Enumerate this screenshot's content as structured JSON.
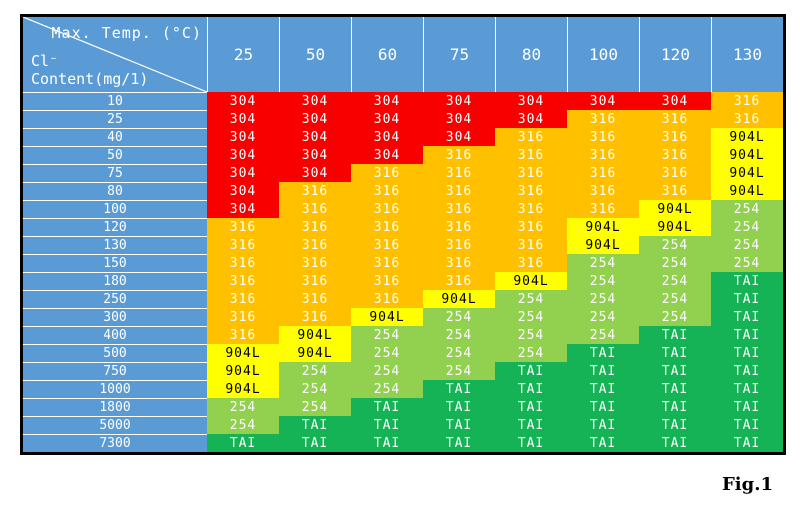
{
  "chart_data": {
    "type": "heatmap",
    "corner": {
      "top_label": "Max. Temp. (°C)",
      "left_label_line1": "Cl⁻",
      "left_label_line2": "Content(mg/1)"
    },
    "x_categories": [
      "25",
      "50",
      "60",
      "75",
      "80",
      "100",
      "120",
      "130"
    ],
    "y_categories": [
      "10",
      "25",
      "40",
      "50",
      "75",
      "80",
      "100",
      "120",
      "130",
      "150",
      "180",
      "250",
      "300",
      "400",
      "500",
      "750",
      "1000",
      "1800",
      "5000",
      "7300"
    ],
    "values": [
      [
        "304",
        "304",
        "304",
        "304",
        "304",
        "304",
        "304",
        "316"
      ],
      [
        "304",
        "304",
        "304",
        "304",
        "304",
        "316",
        "316",
        "316"
      ],
      [
        "304",
        "304",
        "304",
        "304",
        "316",
        "316",
        "316",
        "904L"
      ],
      [
        "304",
        "304",
        "304",
        "316",
        "316",
        "316",
        "316",
        "904L"
      ],
      [
        "304",
        "304",
        "316",
        "316",
        "316",
        "316",
        "316",
        "904L"
      ],
      [
        "304",
        "316",
        "316",
        "316",
        "316",
        "316",
        "316",
        "904L"
      ],
      [
        "304",
        "316",
        "316",
        "316",
        "316",
        "316",
        "904L",
        "254"
      ],
      [
        "316",
        "316",
        "316",
        "316",
        "316",
        "904L",
        "904L",
        "254"
      ],
      [
        "316",
        "316",
        "316",
        "316",
        "316",
        "904L",
        "254",
        "254"
      ],
      [
        "316",
        "316",
        "316",
        "316",
        "316",
        "254",
        "254",
        "254"
      ],
      [
        "316",
        "316",
        "316",
        "316",
        "904L",
        "254",
        "254",
        "TAI"
      ],
      [
        "316",
        "316",
        "316",
        "904L",
        "254",
        "254",
        "254",
        "TAI"
      ],
      [
        "316",
        "316",
        "904L",
        "254",
        "254",
        "254",
        "254",
        "TAI"
      ],
      [
        "316",
        "904L",
        "254",
        "254",
        "254",
        "254",
        "TAI",
        "TAI"
      ],
      [
        "904L",
        "904L",
        "254",
        "254",
        "254",
        "TAI",
        "TAI",
        "TAI"
      ],
      [
        "904L",
        "254",
        "254",
        "254",
        "TAI",
        "TAI",
        "TAI",
        "TAI"
      ],
      [
        "904L",
        "254",
        "254",
        "TAI",
        "TAI",
        "TAI",
        "TAI",
        "TAI"
      ],
      [
        "254",
        "254",
        "TAI",
        "TAI",
        "TAI",
        "TAI",
        "TAI",
        "TAI"
      ],
      [
        "254",
        "TAI",
        "TAI",
        "TAI",
        "TAI",
        "TAI",
        "TAI",
        "TAI"
      ],
      [
        "TAI",
        "TAI",
        "TAI",
        "TAI",
        "TAI",
        "TAI",
        "TAI",
        "TAI"
      ]
    ],
    "cell_colors": {
      "304": "#F80000",
      "316": "#FFC000",
      "904L": "#FFFF00",
      "254": "#92D050",
      "TAI": "#16B356"
    },
    "cell_text_colors": {
      "904L": "#000000",
      "default": "#FFFFFF"
    },
    "header_color": "#5B9BD5",
    "caption": "Fig.1"
  }
}
